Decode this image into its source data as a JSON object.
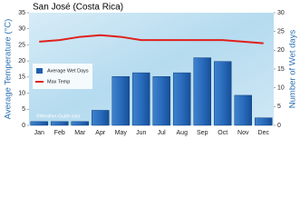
{
  "chart_data": {
    "type": "bar",
    "title": "San José (Costa Rica)",
    "y_label": "Average Temperature (°C)",
    "y2_label": "Number of Wet days",
    "watermark": "©Weather-Guide.com",
    "categories": [
      "Jan",
      "Feb",
      "Mar",
      "Apr",
      "May",
      "Jun",
      "Jul",
      "Aug",
      "Sep",
      "Oct",
      "Nov",
      "Dec"
    ],
    "series": [
      {
        "name": "Average Wet Days",
        "type": "bar",
        "axis": "y2",
        "color": "#1f5fb0",
        "values": [
          1,
          1,
          1,
          4,
          13,
          14,
          13,
          14,
          18,
          17,
          8,
          2
        ]
      },
      {
        "name": "Max Temp",
        "type": "line",
        "axis": "y",
        "color": "#e0201b",
        "values": [
          26,
          26.5,
          27.5,
          28,
          27.5,
          26.5,
          26.5,
          26.5,
          26.5,
          26.5,
          26,
          25.5
        ]
      }
    ],
    "ylim": [
      0,
      35
    ],
    "yticks": [
      0,
      5,
      10,
      15,
      20,
      25,
      30,
      35
    ],
    "y2lim": [
      0,
      30
    ],
    "y2ticks": [
      0,
      5,
      10,
      15,
      20,
      25,
      30
    ]
  }
}
